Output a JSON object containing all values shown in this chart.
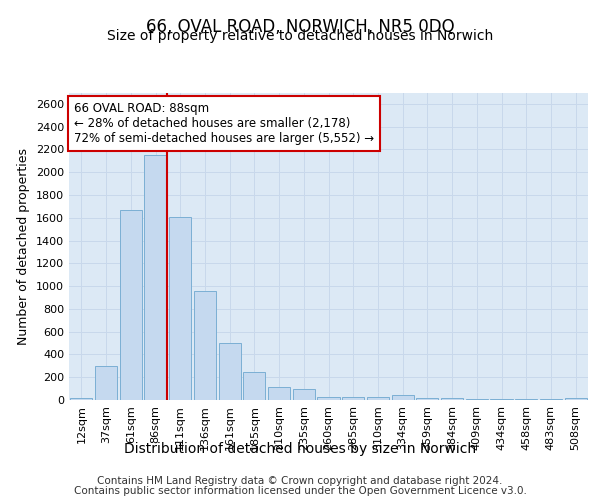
{
  "title": "66, OVAL ROAD, NORWICH, NR5 0DQ",
  "subtitle": "Size of property relative to detached houses in Norwich",
  "xlabel": "Distribution of detached houses by size in Norwich",
  "ylabel": "Number of detached properties",
  "categories": [
    "12sqm",
    "37sqm",
    "61sqm",
    "86sqm",
    "111sqm",
    "136sqm",
    "161sqm",
    "185sqm",
    "210sqm",
    "235sqm",
    "260sqm",
    "285sqm",
    "310sqm",
    "334sqm",
    "359sqm",
    "384sqm",
    "409sqm",
    "434sqm",
    "458sqm",
    "483sqm",
    "508sqm"
  ],
  "values": [
    20,
    300,
    1670,
    2150,
    1610,
    960,
    500,
    250,
    115,
    95,
    30,
    30,
    30,
    40,
    15,
    15,
    10,
    10,
    10,
    10,
    20
  ],
  "bar_color": "#c5d9ef",
  "bar_edgecolor": "#7bafd4",
  "vline_color": "#cc0000",
  "vline_index": 3,
  "annotation_text": "66 OVAL ROAD: 88sqm\n← 28% of detached houses are smaller (2,178)\n72% of semi-detached houses are larger (5,552) →",
  "annotation_box_facecolor": "#ffffff",
  "annotation_box_edgecolor": "#cc0000",
  "ylim": [
    0,
    2700
  ],
  "yticks": [
    0,
    200,
    400,
    600,
    800,
    1000,
    1200,
    1400,
    1600,
    1800,
    2000,
    2200,
    2400,
    2600
  ],
  "grid_color": "#c8d8eb",
  "background_color": "#dce9f5",
  "footer_line1": "Contains HM Land Registry data © Crown copyright and database right 2024.",
  "footer_line2": "Contains public sector information licensed under the Open Government Licence v3.0.",
  "title_fontsize": 12,
  "subtitle_fontsize": 10,
  "ylabel_fontsize": 9,
  "xlabel_fontsize": 10,
  "tick_fontsize": 8,
  "footer_fontsize": 7.5,
  "ann_fontsize": 8.5
}
